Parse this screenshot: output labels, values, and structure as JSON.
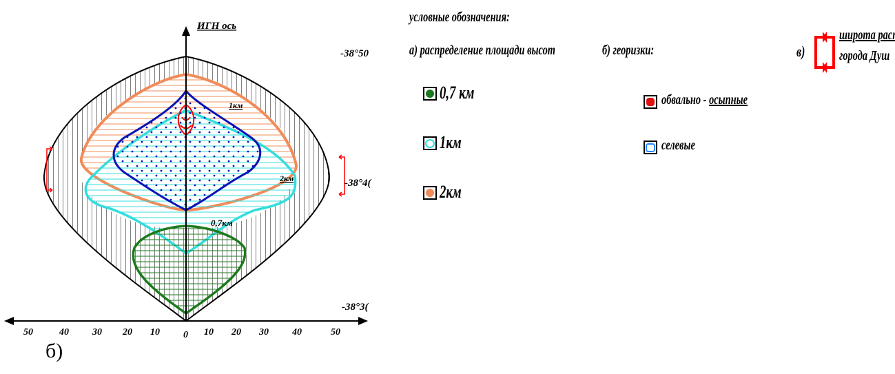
{
  "diagram": {
    "y_axis_label": "ИГН ось",
    "x_ticks_left": [
      "50",
      "40",
      "30",
      "20",
      "10"
    ],
    "x_tick_zero": "0",
    "x_ticks_right": [
      "10",
      "20",
      "30",
      "40",
      "50"
    ],
    "lat_top": "-38°50",
    "lat_mid": "-38°4(",
    "lat_bottom": "-38°3(",
    "contour_labels": {
      "km1": "1км",
      "km2": "2км",
      "km07": "0,7км"
    },
    "colors": {
      "green": "#1d7a1d",
      "cyan": "#33dddd",
      "orange": "#f08c5a",
      "blue": "#0a14b4",
      "red": "#ff0000"
    }
  },
  "legend": {
    "title": "условные обозначения:",
    "section_a": "а) распределение   площади высот",
    "items_a": [
      {
        "label": "0,7 км",
        "color": "#1d7a1d",
        "icon": "green-blob-icon"
      },
      {
        "label": "1км",
        "color": "#33dddd",
        "icon": "cyan-blob-icon"
      },
      {
        "label": "2км",
        "color": "#f08c5a",
        "icon": "orange-blob-icon"
      }
    ],
    "section_b": "б) георизки:",
    "items_b": [
      {
        "label_main": "обвально - ",
        "label_underlined": "осыпные",
        "color": "#dd1111",
        "icon": "red-octagon-icon"
      },
      {
        "label_main": "селевые",
        "label_underlined": "",
        "color": "#2288ff",
        "icon": "blue-octagon-icon"
      }
    ],
    "section_c_prefix": "в)",
    "section_c_line1": "широта  расп",
    "section_c_line2": "города  Душ",
    "bracket_icon": "red-bracket-arrows-icon"
  },
  "panel_label": "б)"
}
